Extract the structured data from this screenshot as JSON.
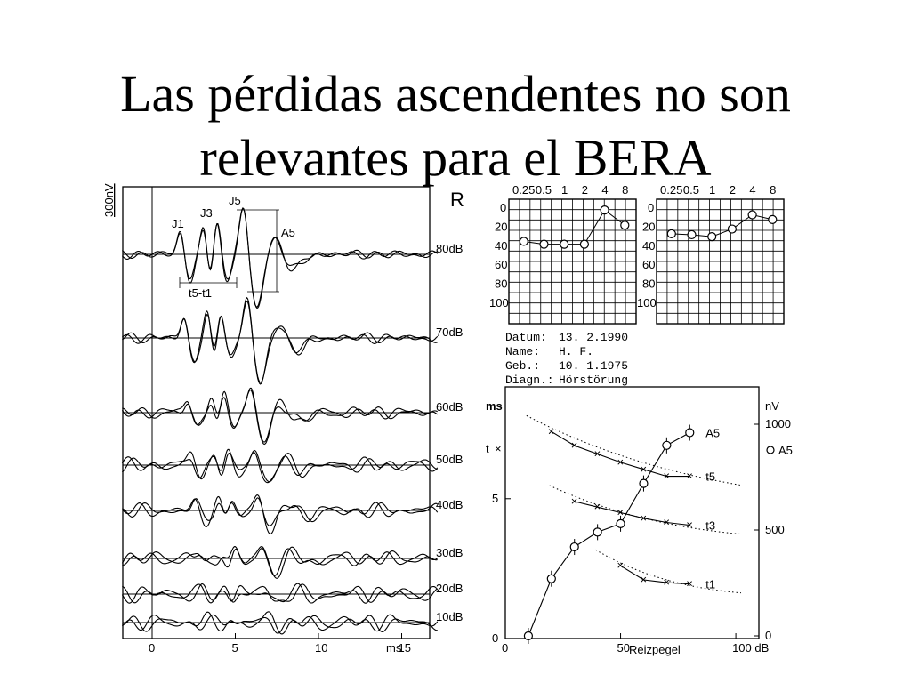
{
  "slide": {
    "title_line1": "Las pérdidas ascendentes no son",
    "title_line2": "relevantes para el BERA"
  },
  "bera": {
    "scale_label": "300nV",
    "side": "R",
    "peaks": [
      "J1",
      "J3",
      "J5"
    ],
    "amplitude_label": "A5",
    "interval_label": "t5-t1",
    "levels": [
      "80dB",
      "70dB",
      "60dB",
      "50dB",
      "40dB",
      "30dB",
      "20dB",
      "10dB"
    ],
    "x_ticks": [
      "0",
      "5",
      "10",
      "15"
    ],
    "x_unit": "ms"
  },
  "audiograms": {
    "freq_labels": [
      "0.25",
      "0.5",
      "1",
      "2",
      "4",
      "8"
    ],
    "db_labels": [
      "0",
      "20",
      "40",
      "60",
      "80",
      "100"
    ],
    "left_thresholds_db": [
      35,
      38,
      38,
      38,
      2,
      18
    ],
    "right_thresholds_db": [
      27,
      28,
      30,
      22,
      7,
      12
    ]
  },
  "patient": {
    "datum_label": "Datum:",
    "datum_value": "13. 2.1990",
    "name_label": "Name:",
    "name_value": "H. F.",
    "geb_label": "Geb.:",
    "geb_value": "10. 1.1975",
    "diagn_label": "Diagn.:",
    "diagn_value": "Hörstörung"
  },
  "chart_data": {
    "type": "line",
    "xlabel": "Reizpegel",
    "x_ticks": [
      "0",
      "50",
      "100 dB"
    ],
    "left_axis": {
      "unit": "ms",
      "ticks": [
        "0",
        "5"
      ],
      "legend": "t"
    },
    "right_axis": {
      "unit": "nV",
      "ticks": [
        "0",
        "500",
        "1000"
      ],
      "legend": "A5"
    },
    "xlim": [
      0,
      110
    ],
    "ylim_ms": [
      0,
      9
    ],
    "ylim_nv": [
      0,
      1000
    ],
    "series": [
      {
        "name": "A5",
        "axis": "nV",
        "x": [
          10,
          20,
          30,
          40,
          50,
          60,
          70,
          80
        ],
        "values": [
          0,
          270,
          420,
          490,
          530,
          720,
          900,
          960
        ]
      },
      {
        "name": "t5",
        "axis": "ms",
        "x": [
          20,
          30,
          40,
          50,
          60,
          70,
          80
        ],
        "values": [
          7.4,
          6.9,
          6.6,
          6.3,
          6.05,
          5.8,
          5.8
        ]
      },
      {
        "name": "t3",
        "axis": "ms",
        "x": [
          30,
          40,
          50,
          60,
          70,
          80
        ],
        "values": [
          4.9,
          4.7,
          4.5,
          4.3,
          4.15,
          4.05
        ]
      },
      {
        "name": "t1",
        "axis": "ms",
        "x": [
          50,
          60,
          70,
          80
        ],
        "values": [
          2.6,
          2.1,
          2.0,
          1.95
        ]
      }
    ]
  }
}
